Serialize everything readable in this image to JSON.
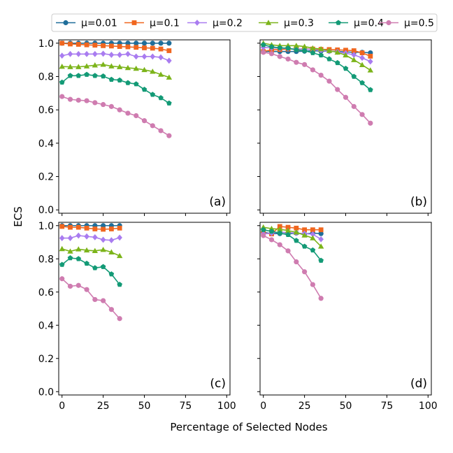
{
  "chart_data": {
    "type": "line",
    "xlabel": "Percentage of Selected Nodes",
    "ylabel": "ECS",
    "xlim": [
      -2,
      102
    ],
    "ylim": [
      -0.02,
      1.02
    ],
    "xticks": [
      0,
      25,
      50,
      75,
      100
    ],
    "yticks": [
      0.0,
      0.2,
      0.4,
      0.6,
      0.8,
      1.0
    ],
    "grid": false,
    "legend_placement": "top-center",
    "legend": [
      {
        "name": "μ=0.01",
        "color": "#1f6e9a",
        "marker": "circle"
      },
      {
        "name": "μ=0.1",
        "color": "#f0661e",
        "marker": "square"
      },
      {
        "name": "μ=0.2",
        "color": "#a97cf0",
        "marker": "diamond"
      },
      {
        "name": "μ=0.3",
        "color": "#7cb41a",
        "marker": "triangle"
      },
      {
        "name": "μ=0.4",
        "color": "#139a76",
        "marker": "pentagon"
      },
      {
        "name": "μ=0.5",
        "color": "#cf7cb0",
        "marker": "circle"
      }
    ],
    "panels": [
      {
        "label": "(a)",
        "x": [
          0,
          5,
          10,
          15,
          20,
          25,
          30,
          35,
          40,
          45,
          50,
          55,
          60,
          65
        ],
        "series": [
          [
            1.0,
            1.0,
            1.0,
            1.0,
            1.0,
            1.0,
            1.0,
            1.0,
            1.0,
            1.0,
            1.0,
            1.0,
            1.0,
            1.0
          ],
          [
            1.0,
            0.995,
            0.993,
            0.99,
            0.988,
            0.985,
            0.983,
            0.98,
            0.978,
            0.975,
            0.972,
            0.97,
            0.965,
            0.955
          ],
          [
            0.925,
            0.935,
            0.935,
            0.935,
            0.935,
            0.937,
            0.93,
            0.93,
            0.935,
            0.92,
            0.92,
            0.92,
            0.915,
            0.895
          ],
          [
            0.86,
            0.858,
            0.858,
            0.862,
            0.868,
            0.872,
            0.862,
            0.858,
            0.852,
            0.848,
            0.84,
            0.83,
            0.812,
            0.795
          ],
          [
            0.765,
            0.805,
            0.805,
            0.812,
            0.805,
            0.802,
            0.782,
            0.778,
            0.762,
            0.755,
            0.722,
            0.692,
            0.672,
            0.64
          ],
          [
            0.68,
            0.663,
            0.658,
            0.655,
            0.643,
            0.632,
            0.62,
            0.6,
            0.58,
            0.565,
            0.535,
            0.505,
            0.475,
            0.445
          ]
        ]
      },
      {
        "label": "(b)",
        "x": [
          0,
          5,
          10,
          15,
          20,
          25,
          30,
          35,
          40,
          45,
          50,
          55,
          60,
          65
        ],
        "series": [
          [
            0.95,
            0.95,
            0.95,
            0.95,
            0.95,
            0.952,
            0.955,
            0.952,
            0.952,
            0.95,
            0.948,
            0.945,
            0.945,
            0.942
          ],
          [
            0.95,
            0.96,
            0.962,
            0.965,
            0.965,
            0.965,
            0.965,
            0.963,
            0.962,
            0.96,
            0.958,
            0.955,
            0.942,
            0.922
          ],
          [
            0.975,
            0.972,
            0.97,
            0.968,
            0.965,
            0.965,
            0.962,
            0.955,
            0.952,
            0.948,
            0.94,
            0.93,
            0.912,
            0.89
          ],
          [
            1.0,
            0.99,
            0.985,
            0.985,
            0.985,
            0.98,
            0.97,
            0.965,
            0.955,
            0.945,
            0.928,
            0.9,
            0.87,
            0.838
          ],
          [
            0.99,
            0.978,
            0.972,
            0.97,
            0.96,
            0.955,
            0.942,
            0.928,
            0.905,
            0.882,
            0.848,
            0.8,
            0.762,
            0.72
          ],
          [
            0.945,
            0.937,
            0.92,
            0.905,
            0.885,
            0.872,
            0.84,
            0.808,
            0.772,
            0.722,
            0.675,
            0.62,
            0.572,
            0.52
          ]
        ]
      },
      {
        "label": "(c)",
        "x": [
          0,
          5,
          10,
          15,
          20,
          25,
          30,
          35
        ],
        "series": [
          [
            1.0,
            1.0,
            1.0,
            1.0,
            1.0,
            1.0,
            1.0,
            1.0
          ],
          [
            0.995,
            0.99,
            0.99,
            0.985,
            0.98,
            0.978,
            0.98,
            0.985
          ],
          [
            0.925,
            0.925,
            0.94,
            0.935,
            0.93,
            0.915,
            0.912,
            0.928
          ],
          [
            0.86,
            0.845,
            0.858,
            0.852,
            0.848,
            0.855,
            0.84,
            0.818
          ],
          [
            0.765,
            0.805,
            0.8,
            0.772,
            0.745,
            0.752,
            0.708,
            0.645
          ],
          [
            0.68,
            0.635,
            0.64,
            0.615,
            0.555,
            0.548,
            0.495,
            0.44
          ]
        ]
      },
      {
        "label": "(d)",
        "x": [
          0,
          5,
          10,
          15,
          20,
          25,
          30,
          35
        ],
        "series": [
          [
            0.96,
            0.952,
            0.952,
            0.95,
            0.955,
            0.95,
            0.955,
            0.952
          ],
          [
            0.955,
            0.95,
            0.995,
            0.99,
            0.985,
            0.975,
            0.975,
            0.975
          ],
          [
            0.95,
            0.955,
            0.96,
            0.958,
            0.955,
            0.952,
            0.948,
            0.918
          ],
          [
            0.99,
            0.982,
            0.978,
            0.97,
            0.96,
            0.942,
            0.925,
            0.875
          ],
          [
            0.975,
            0.965,
            0.955,
            0.945,
            0.91,
            0.875,
            0.852,
            0.79
          ],
          [
            0.94,
            0.915,
            0.885,
            0.848,
            0.782,
            0.722,
            0.645,
            0.562
          ]
        ]
      }
    ]
  }
}
